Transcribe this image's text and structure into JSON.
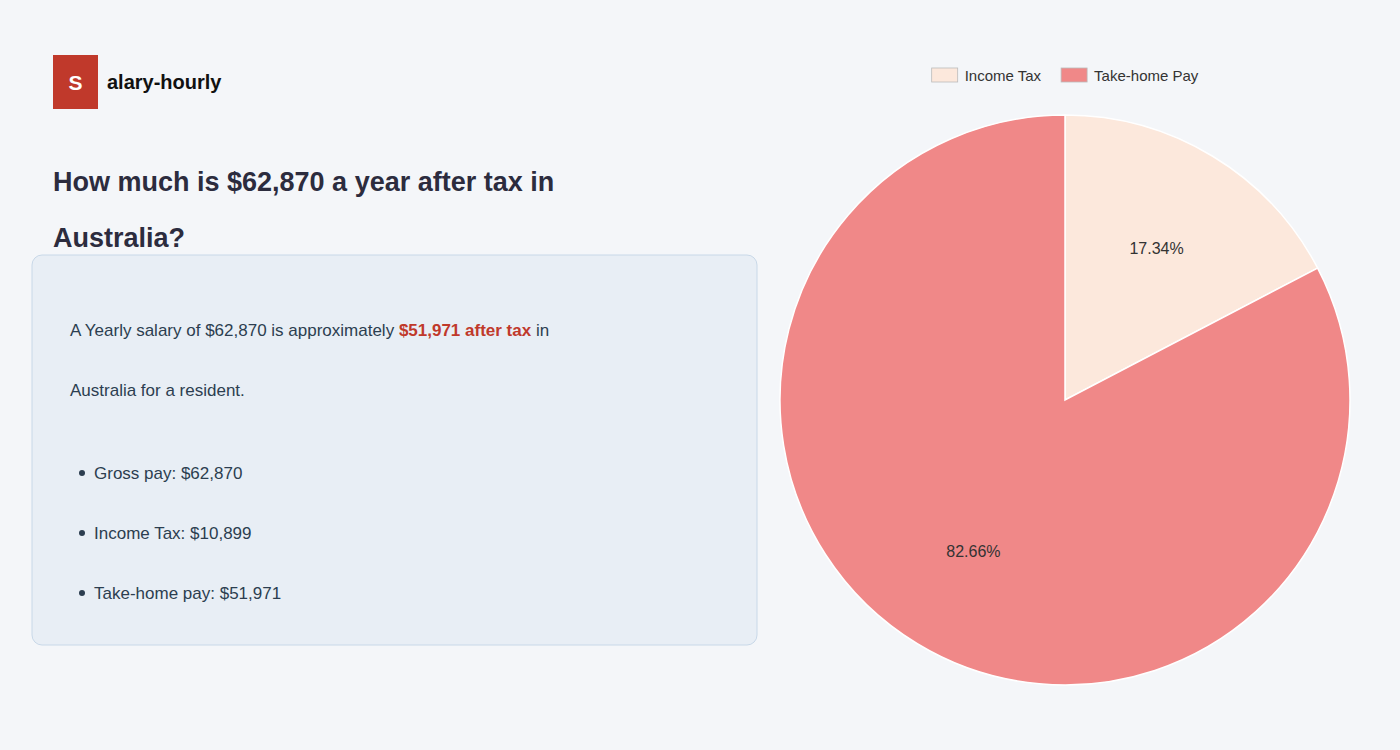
{
  "chart_data": {
    "type": "pie",
    "title": [
      "How much is $62,870 a year after tax in",
      "Australia?"
    ],
    "annotations": [
      "S",
      "alary-hourly",
      "A Yearly salary of $62,870 is approximately ",
      "$51,971 after tax",
      " in",
      "Australia for a resident.",
      "Gross pay: $62,870",
      "Income Tax: $10,899",
      "Take-home pay: $51,971"
    ],
    "categories": [
      "Income Tax",
      "Take-home Pay"
    ],
    "values": [
      17.34,
      82.66
    ],
    "value_labels": [
      "17.34%",
      "82.66%"
    ],
    "colors": [
      "#fce8dc",
      "#f08888"
    ],
    "data_labels": true,
    "legend": "top"
  }
}
